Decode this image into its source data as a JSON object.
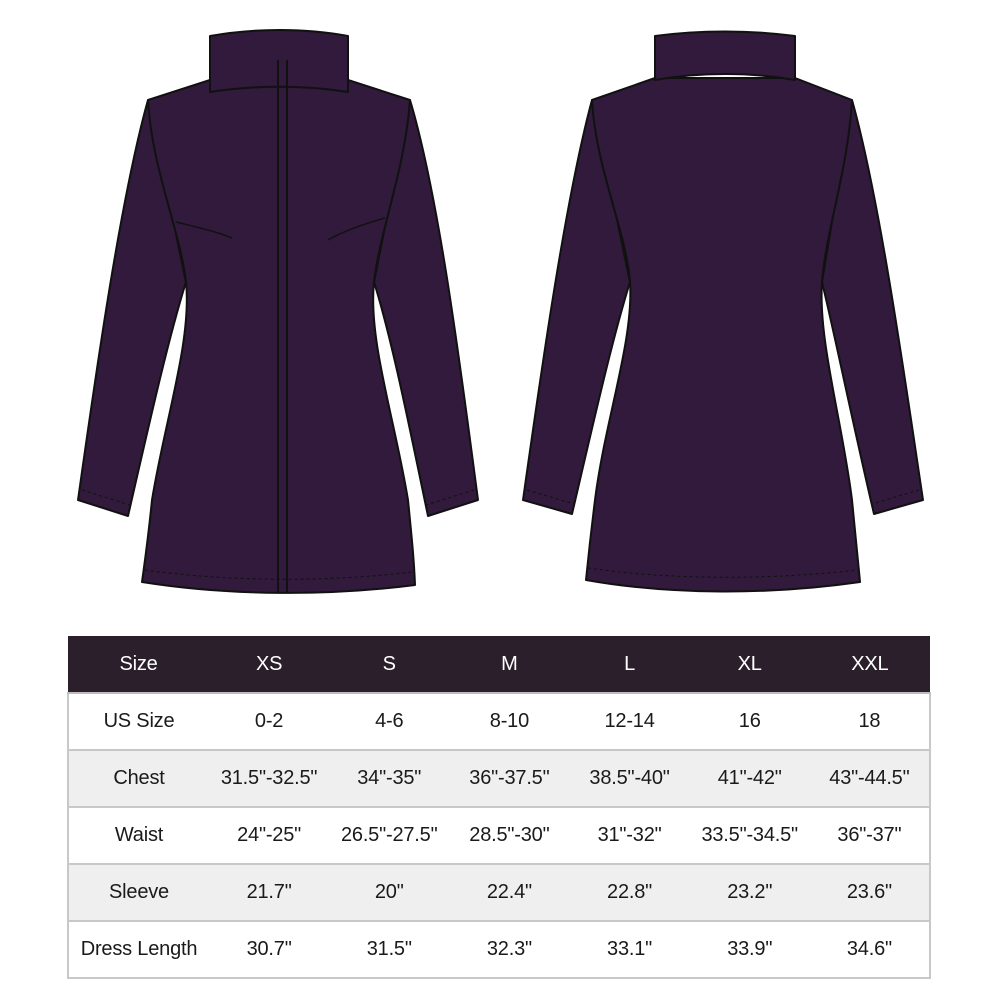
{
  "colors": {
    "garment": "#311a3b",
    "header_bg": "#2c1f2c",
    "alt_row": "#efefef"
  },
  "illustrations": [
    {
      "name": "front-view"
    },
    {
      "name": "back-view"
    }
  ],
  "size_chart": {
    "headers": [
      "Size",
      "XS",
      "S",
      "M",
      "L",
      "XL",
      "XXL"
    ],
    "rows": [
      [
        "US Size",
        "0-2",
        "4-6",
        "8-10",
        "12-14",
        "16",
        "18"
      ],
      [
        "Chest",
        "31.5\"-32.5\"",
        "34\"-35\"",
        "36\"-37.5\"",
        "38.5\"-40\"",
        "41\"-42\"",
        "43\"-44.5\""
      ],
      [
        "Waist",
        "24\"-25\"",
        "26.5\"-27.5\"",
        "28.5\"-30\"",
        "31\"-32\"",
        "33.5\"-34.5\"",
        "36\"-37\""
      ],
      [
        "Sleeve",
        "21.7\"",
        "20\"",
        "22.4\"",
        "22.8\"",
        "23.2\"",
        "23.6\""
      ],
      [
        "Dress Length",
        "30.7\"",
        "31.5\"",
        "32.3\"",
        "33.1\"",
        "33.9\"",
        "34.6\""
      ]
    ]
  }
}
